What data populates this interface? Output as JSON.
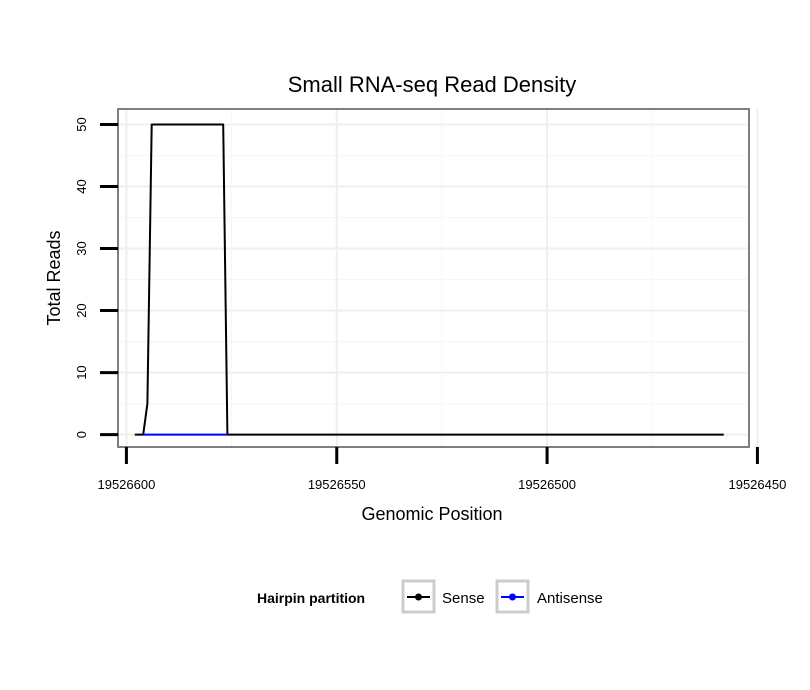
{
  "chart_data": {
    "type": "line",
    "title": "Small RNA-seq Read Density",
    "xlabel": "Genomic Position",
    "ylabel": "Total Reads",
    "xlim": [
      19526602,
      19526452
    ],
    "ylim": [
      -2,
      52.5
    ],
    "x_reversed": true,
    "x_ticks": [
      19526600,
      19526550,
      19526500,
      19526450
    ],
    "x_tick_labels": [
      "19526600",
      "19526550",
      "19526500",
      "19526450"
    ],
    "y_ticks": [
      0,
      10,
      20,
      30,
      40,
      50
    ],
    "y_tick_labels": [
      "0",
      "10",
      "20",
      "30",
      "40",
      "50"
    ],
    "grid": true,
    "legend": {
      "title": "Hairpin partition",
      "position": "bottom"
    },
    "series": [
      {
        "name": "Sense",
        "color": "#000000",
        "x": [
          19526598,
          19526596,
          19526595,
          19526594,
          19526577,
          19526576,
          19526458
        ],
        "y": [
          0,
          0,
          5,
          50,
          50,
          0,
          0
        ]
      },
      {
        "name": "Antisense",
        "color": "#0000ff",
        "x": [
          19526596,
          19526576
        ],
        "y": [
          0,
          0
        ]
      }
    ]
  }
}
